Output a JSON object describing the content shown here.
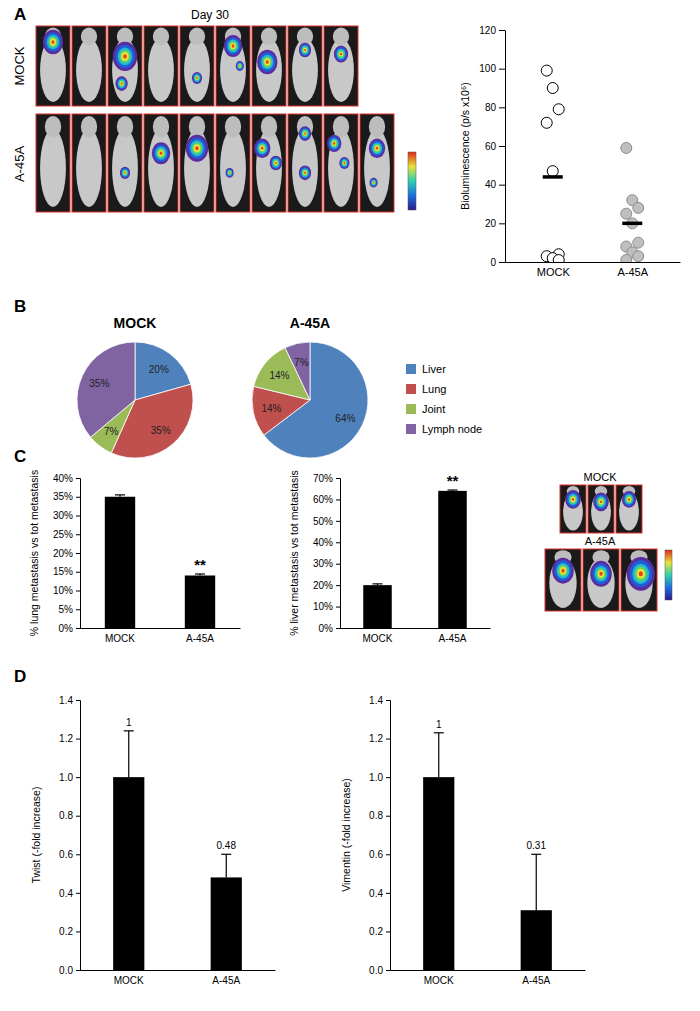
{
  "chart_data": [
    {
      "type": "image",
      "panel": "A",
      "title": "Day 30",
      "row_labels": [
        "MOCK",
        "A-45A"
      ]
    },
    {
      "type": "scatter",
      "categories": [
        "MOCK",
        "A-45A"
      ],
      "values": [
        [
          99,
          90,
          79,
          72,
          47,
          4,
          3,
          2,
          1
        ],
        [
          59,
          32,
          28,
          25,
          20,
          10,
          8,
          5,
          3,
          1
        ]
      ],
      "means": [
        44,
        20
      ],
      "colors": [
        "#ffffff",
        "#bfbfbf"
      ],
      "y_label": "Bioluminescence (p/s x10⁶)",
      "ylim": [
        0,
        120
      ],
      "yticks": [
        0,
        20,
        40,
        60,
        80,
        100,
        120
      ]
    },
    {
      "type": "pie",
      "panel": "B",
      "title": "MOCK",
      "categories": [
        "Liver",
        "Lung",
        "Joint",
        "Lymph node"
      ],
      "values": [
        20,
        35,
        7,
        35
      ],
      "value_labels": [
        "20%",
        "35%",
        "7%",
        "35%"
      ],
      "colors": [
        "#4f81bd",
        "#c0504d",
        "#9bbb59",
        "#8064a2"
      ],
      "data_labels": true
    },
    {
      "type": "pie",
      "title": "A-45A",
      "categories": [
        "Liver",
        "Lung",
        "Joint",
        "Lymph node"
      ],
      "values": [
        64,
        14,
        14,
        7
      ],
      "value_labels": [
        "64%",
        "14%",
        "14%",
        "7%"
      ],
      "colors": [
        "#4f81bd",
        "#c0504d",
        "#9bbb59",
        "#8064a2"
      ],
      "data_labels": true,
      "legend": "right"
    },
    {
      "type": "bar",
      "panel": "C",
      "categories": [
        "MOCK",
        "A-45A"
      ],
      "values": [
        35,
        14
      ],
      "errors": [
        0.5,
        0.4
      ],
      "annotations": [
        null,
        "**"
      ],
      "color": "#000000",
      "y_label": "% lung metastasis vs tot metastasis",
      "ylim": [
        0,
        40
      ],
      "yticks": [
        {
          "value": 0,
          "label": "0%"
        },
        {
          "value": 5,
          "label": "5%"
        },
        {
          "value": 10,
          "label": "10%"
        },
        {
          "value": 15,
          "label": "15%"
        },
        {
          "value": 20,
          "label": "20%"
        },
        {
          "value": 25,
          "label": "25%"
        },
        {
          "value": 30,
          "label": "30%"
        },
        {
          "value": 35,
          "label": "35%"
        },
        {
          "value": 40,
          "label": "40%"
        }
      ]
    },
    {
      "type": "bar",
      "categories": [
        "MOCK",
        "A-45A"
      ],
      "values": [
        20,
        64
      ],
      "errors": [
        0.6,
        0.4
      ],
      "annotations": [
        null,
        "**"
      ],
      "color": "#000000",
      "y_label": "% liver metastasis vs tot metastasis",
      "ylim": [
        0,
        70
      ],
      "yticks": [
        {
          "value": 0,
          "label": "0%"
        },
        {
          "value": 10,
          "label": "10%"
        },
        {
          "value": 20,
          "label": "20%"
        },
        {
          "value": 30,
          "label": "30%"
        },
        {
          "value": 40,
          "label": "40%"
        },
        {
          "value": 50,
          "label": "50%"
        },
        {
          "value": 60,
          "label": "60%"
        },
        {
          "value": 70,
          "label": "70%"
        }
      ]
    },
    {
      "type": "image",
      "row_labels": [
        "MOCK",
        "A-45A"
      ]
    },
    {
      "type": "bar",
      "panel": "D",
      "categories": [
        "MOCK",
        "A-45A"
      ],
      "values": [
        1,
        0.48
      ],
      "errors": [
        0.24,
        0.12
      ],
      "data_labels": true,
      "color": "#000000",
      "y_label": "Twist (-fold increase)",
      "ylim": [
        0,
        1.4
      ],
      "yticks": [
        {
          "value": 0,
          "label": "0.0"
        },
        {
          "value": 0.2,
          "label": "0.2"
        },
        {
          "value": 0.4,
          "label": "0.4"
        },
        {
          "value": 0.6,
          "label": "0.6"
        },
        {
          "value": 0.8,
          "label": "0.8"
        },
        {
          "value": 1,
          "label": "1.0"
        },
        {
          "value": 1.2,
          "label": "1.2"
        },
        {
          "value": 1.4,
          "label": "1.4"
        }
      ]
    },
    {
      "type": "bar",
      "categories": [
        "MOCK",
        "A-45A"
      ],
      "values": [
        1,
        0.31
      ],
      "errors": [
        0.23,
        0.29
      ],
      "data_labels": true,
      "color": "#000000",
      "y_label": "Vimentin (-fold increase)",
      "ylim": [
        0,
        1.4
      ],
      "yticks": [
        {
          "value": 0,
          "label": "0.0"
        },
        {
          "value": 0.2,
          "label": "0.2"
        },
        {
          "value": 0.4,
          "label": "0.4"
        },
        {
          "value": 0.6,
          "label": "0.6"
        },
        {
          "value": 0.8,
          "label": "0.8"
        },
        {
          "value": 1,
          "label": "1.0"
        },
        {
          "value": 1.2,
          "label": "1.2"
        },
        {
          "value": 1.4,
          "label": "1.4"
        }
      ]
    }
  ]
}
